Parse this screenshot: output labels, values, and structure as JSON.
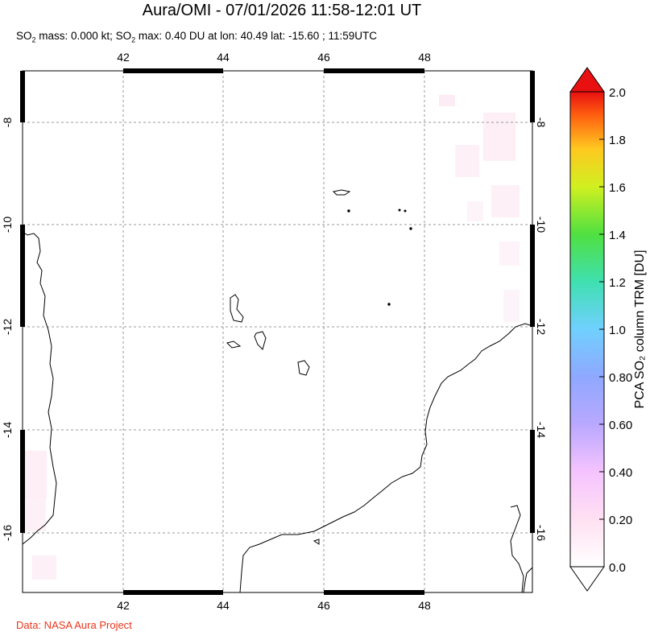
{
  "header": {
    "title": "Aura/OMI - 07/01/2026 11:58-12:01 UT",
    "subtitle_part1": "SO",
    "subtitle_sub1": "2",
    "subtitle_part2": " mass: 0.000 kt; SO",
    "subtitle_sub2": "2",
    "subtitle_part3": " max: 0.40 DU at lon: 40.49 lat: -15.60 ; 11:59UTC"
  },
  "map": {
    "lon_ticks": [
      "42",
      "44",
      "46",
      "48"
    ],
    "lat_ticks": [
      "-8",
      "-10",
      "-12",
      "-14",
      "-16"
    ],
    "lon_range": [
      40.0,
      50.0
    ],
    "lat_range": [
      -17.2,
      -7.0
    ],
    "grid": "dashed"
  },
  "colorbar": {
    "label": "PCA SO₂ column TRM [DU]",
    "ticks": [
      "2.0",
      "1.8",
      "1.6",
      "1.4",
      "1.2",
      "1.0",
      "0.80",
      "0.60",
      "0.40",
      "0.20",
      "0.0"
    ],
    "range": [
      0.0,
      2.0
    ],
    "colors": [
      "#ffffff",
      "#ffd6f0",
      "#d9b3ff",
      "#8fa8ff",
      "#6dd4ff",
      "#3fe0b0",
      "#4ee04e",
      "#c8f020",
      "#ffe020",
      "#ff9a10",
      "#ff3010",
      "#e01010"
    ]
  },
  "footer": {
    "credit": "Data: NASA Aura Project"
  }
}
